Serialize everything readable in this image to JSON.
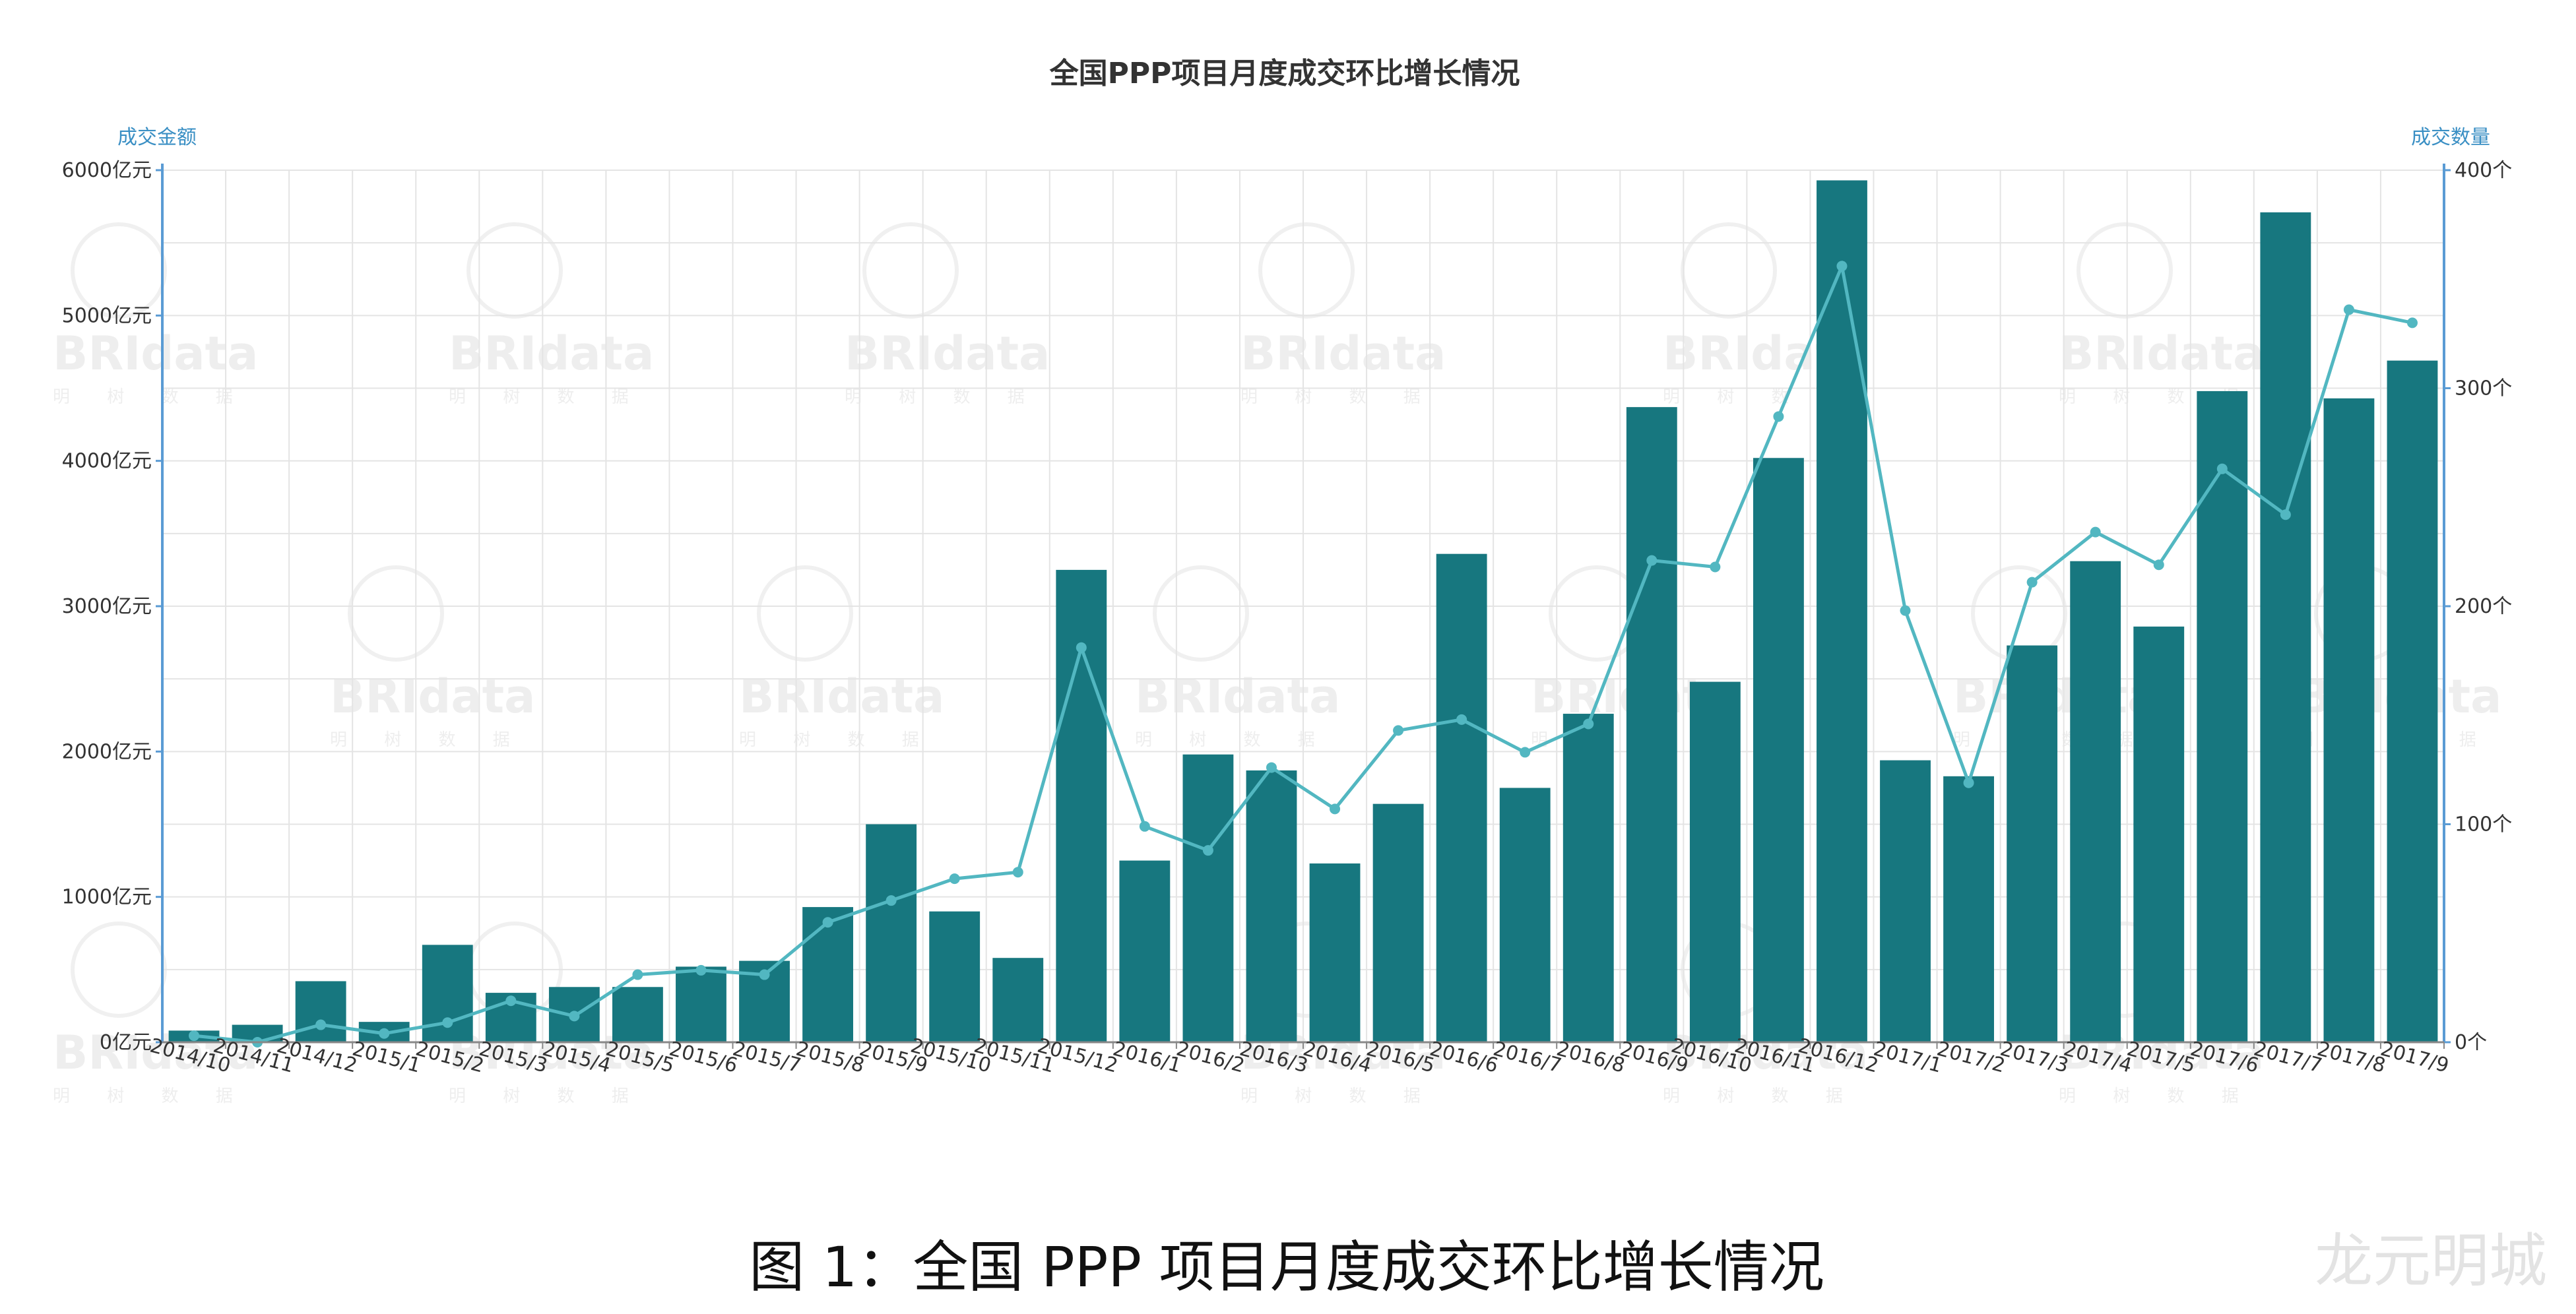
{
  "chart_data": {
    "type": "bar",
    "title": "全国PPP项目月度成交环比增长情况",
    "left_axis_name": "成交金额",
    "right_axis_name": "成交数量",
    "ylim_left": [
      0,
      6000
    ],
    "ylim_right": [
      0,
      400
    ],
    "left_ticks": [
      "0亿元",
      "1000亿元",
      "2000亿元",
      "3000亿元",
      "4000亿元",
      "5000亿元",
      "6000亿元"
    ],
    "right_ticks": [
      "0个",
      "100个",
      "200个",
      "300个",
      "400个"
    ],
    "grid": true,
    "categories": [
      "2014/10",
      "2014/11",
      "2014/12",
      "2015/1",
      "2015/2",
      "2015/3",
      "2015/4",
      "2015/5",
      "2015/6",
      "2015/7",
      "2015/8",
      "2015/9",
      "2015/10",
      "2015/11",
      "2015/12",
      "2016/1",
      "2016/2",
      "2016/3",
      "2016/4",
      "2016/5",
      "2016/6",
      "2016/7",
      "2016/8",
      "2016/9",
      "2016/10",
      "2016/11",
      "2016/12",
      "2017/1",
      "2017/2",
      "2017/3",
      "2017/4",
      "2017/5",
      "2017/6",
      "2017/7",
      "2017/8",
      "2017/9"
    ],
    "series": [
      {
        "name": "成交金额",
        "type": "bar",
        "axis": "left",
        "color": "#17777f",
        "values": [
          80,
          120,
          420,
          140,
          670,
          340,
          380,
          380,
          520,
          560,
          930,
          1500,
          900,
          580,
          3250,
          1250,
          1980,
          1870,
          1230,
          1640,
          3360,
          1750,
          2260,
          4370,
          2480,
          4020,
          5930,
          1940,
          1830,
          2730,
          3310,
          2860,
          4480,
          5710,
          4430,
          4690
        ]
      },
      {
        "name": "成交数量",
        "type": "line",
        "axis": "right",
        "color": "#52b7c1",
        "values": [
          3,
          0,
          8,
          4,
          9,
          19,
          12,
          31,
          33,
          31,
          55,
          65,
          75,
          78,
          181,
          99,
          88,
          126,
          107,
          143,
          148,
          133,
          146,
          221,
          218,
          287,
          356,
          198,
          119,
          211,
          234,
          219,
          263,
          242,
          336,
          330
        ]
      }
    ]
  },
  "caption": "图 1：全国 PPP 项目月度成交环比增长情况",
  "corner_mark": "龙元明城",
  "watermark": {
    "logo": "BRIdata",
    "sub": "明 树 数 据"
  }
}
